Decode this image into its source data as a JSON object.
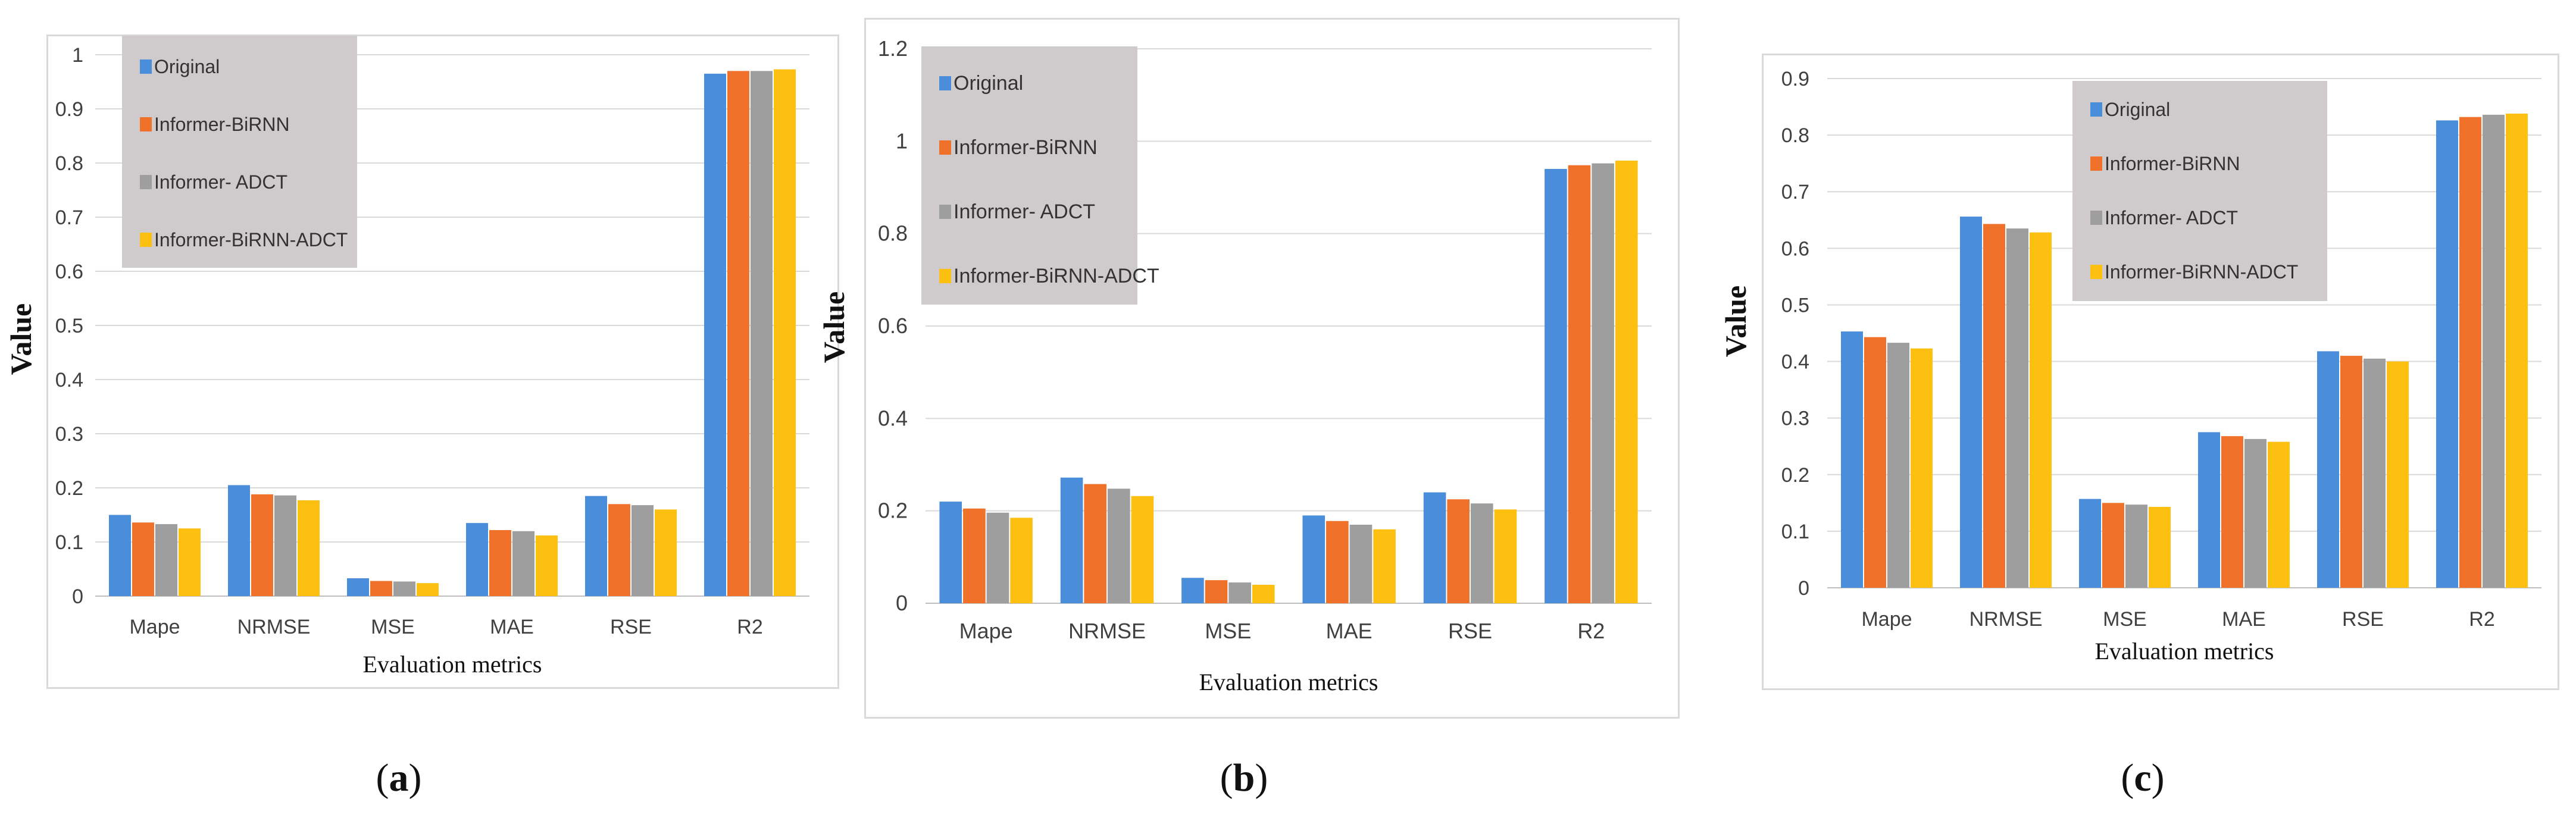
{
  "colors": {
    "series": [
      "#4a8edb",
      "#f0712a",
      "#9e9e9e",
      "#fdbf10"
    ],
    "legend_bg": "#cfcacb",
    "grid": "#d9d9d9",
    "axis_text": "#404040"
  },
  "chart_data": [
    {
      "type": "bar",
      "panel": "(a)",
      "caption_letter": "a",
      "categories": [
        "Mape",
        "NRMSE",
        "MSE",
        "MAE",
        "RSE",
        "R2"
      ],
      "series": [
        {
          "name": "Original",
          "values": [
            0.15,
            0.205,
            0.033,
            0.135,
            0.185,
            0.965
          ]
        },
        {
          "name": "Informer-BiRNN",
          "values": [
            0.136,
            0.188,
            0.028,
            0.122,
            0.17,
            0.97
          ]
        },
        {
          "name": "Informer- ADCT",
          "values": [
            0.133,
            0.186,
            0.027,
            0.12,
            0.168,
            0.97
          ]
        },
        {
          "name": "Informer-BiRNN-ADCT",
          "values": [
            0.125,
            0.177,
            0.024,
            0.112,
            0.16,
            0.973
          ]
        }
      ],
      "yticks": [
        "0",
        "0.1",
        "0.2",
        "0.3",
        "0.4",
        "0.5",
        "0.6",
        "0.7",
        "0.8",
        "0.9",
        "1"
      ],
      "ylim": [
        0,
        1
      ],
      "ylabel": "Value",
      "xlabel": "Evaluation metrics",
      "legend_position": "top-left",
      "grid": true
    },
    {
      "type": "bar",
      "panel": "(b)",
      "caption_letter": "b",
      "categories": [
        "Mape",
        "NRMSE",
        "MSE",
        "MAE",
        "RSE",
        "R2"
      ],
      "series": [
        {
          "name": "Original",
          "values": [
            0.22,
            0.272,
            0.055,
            0.19,
            0.24,
            0.94
          ]
        },
        {
          "name": "Informer-BiRNN",
          "values": [
            0.205,
            0.258,
            0.05,
            0.178,
            0.225,
            0.948
          ]
        },
        {
          "name": "Informer- ADCT",
          "values": [
            0.196,
            0.248,
            0.045,
            0.17,
            0.216,
            0.952
          ]
        },
        {
          "name": "Informer-BiRNN-ADCT",
          "values": [
            0.185,
            0.232,
            0.04,
            0.16,
            0.203,
            0.958
          ]
        }
      ],
      "yticks": [
        "0",
        "0.2",
        "0.4",
        "0.6",
        "0.8",
        "1",
        "1.2"
      ],
      "ylim": [
        0,
        1.2
      ],
      "ylabel": "Value",
      "xlabel": "Evaluation metrics",
      "legend_position": "top-left",
      "grid": true
    },
    {
      "type": "bar",
      "panel": "(c)",
      "caption_letter": "c",
      "categories": [
        "Mape",
        "NRMSE",
        "MSE",
        "MAE",
        "RSE",
        "R2"
      ],
      "series": [
        {
          "name": "Original",
          "values": [
            0.453,
            0.656,
            0.157,
            0.275,
            0.418,
            0.826
          ]
        },
        {
          "name": "Informer-BiRNN",
          "values": [
            0.443,
            0.643,
            0.15,
            0.268,
            0.41,
            0.832
          ]
        },
        {
          "name": "Informer- ADCT",
          "values": [
            0.433,
            0.635,
            0.147,
            0.263,
            0.405,
            0.836
          ]
        },
        {
          "name": "Informer-BiRNN-ADCT",
          "values": [
            0.423,
            0.628,
            0.143,
            0.258,
            0.4,
            0.838
          ]
        }
      ],
      "yticks": [
        "0",
        "0.1",
        "0.2",
        "0.3",
        "0.4",
        "0.5",
        "0.6",
        "0.7",
        "0.8",
        "0.9"
      ],
      "ylim": [
        0,
        0.9
      ],
      "ylabel": "Value",
      "xlabel": "Evaluation metrics",
      "legend_position": "top-center",
      "grid": true
    }
  ]
}
